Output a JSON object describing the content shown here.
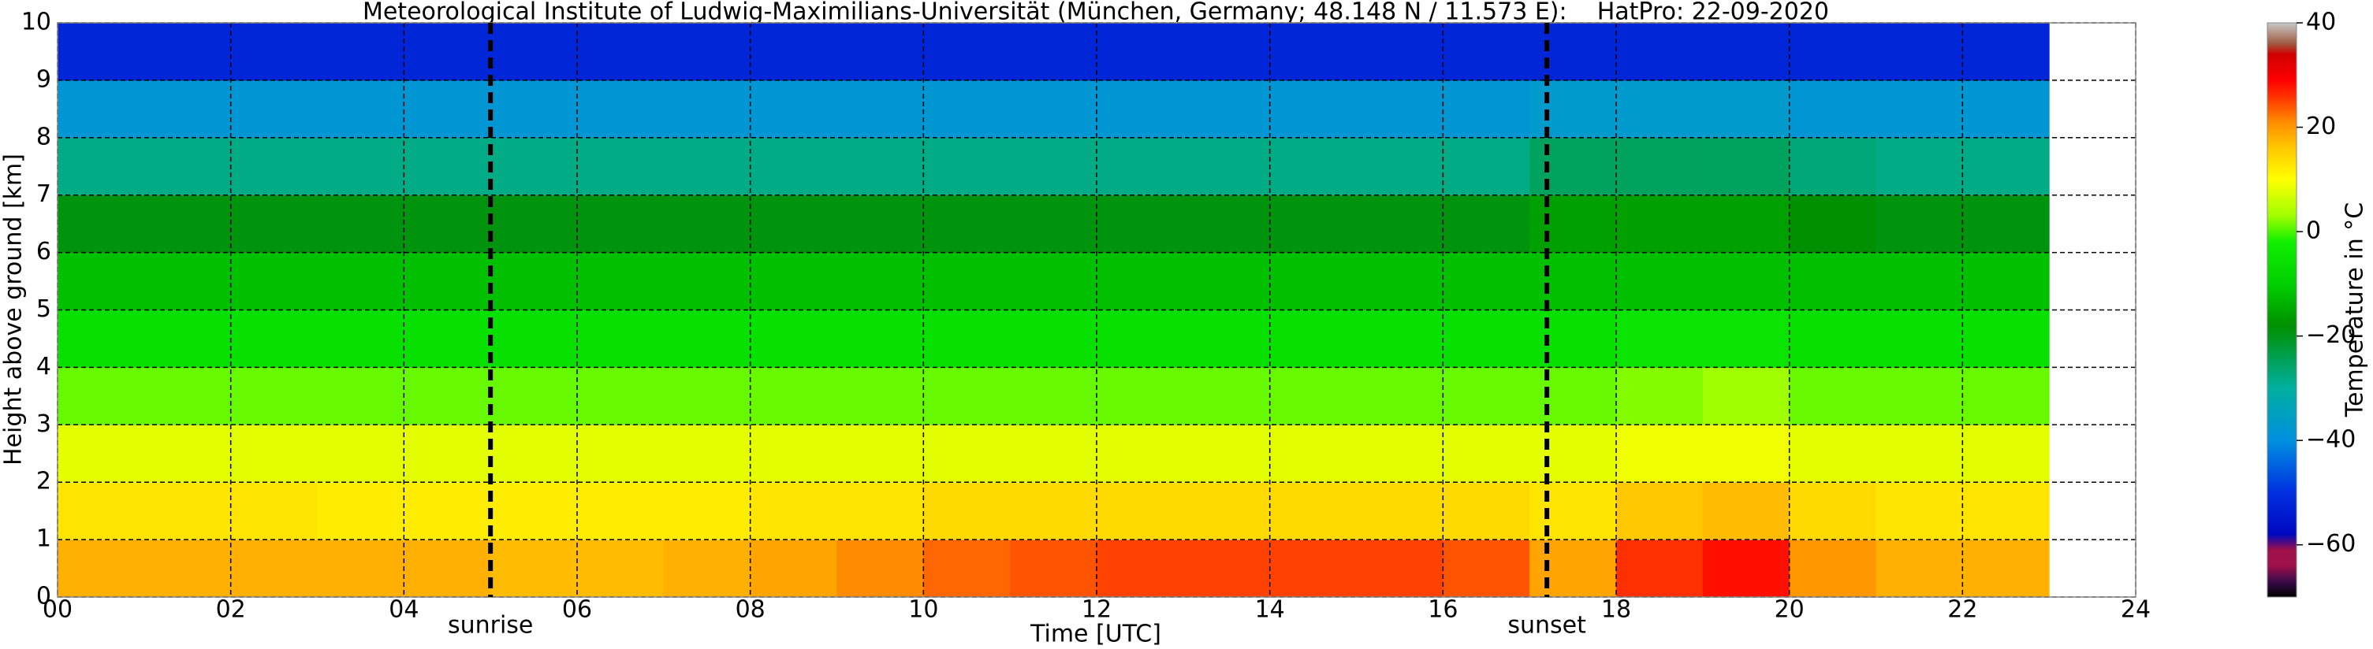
{
  "chart_data": {
    "type": "heatmap",
    "title": "Meteorological Institute of Ludwig-Maximilians-Universität (München, Germany; 48.148 N / 11.573 E):    HatPro: 22-09-2020",
    "x_label": "Time [UTC]",
    "y_label": "Height above ground [km]",
    "colorbar_label": "Temperature in °C",
    "x": [
      0,
      1,
      2,
      3,
      4,
      5,
      6,
      7,
      8,
      9,
      10,
      11,
      12,
      13,
      14,
      15,
      16,
      17,
      18,
      19,
      20,
      21,
      22,
      23
    ],
    "y": [
      0,
      1,
      2,
      3,
      4,
      5,
      6,
      7,
      8,
      9,
      10
    ],
    "z": [
      [
        18,
        18,
        18,
        18,
        18,
        17,
        17,
        18,
        19,
        21,
        23,
        24,
        25,
        25,
        25,
        25,
        24,
        19,
        26,
        28,
        20,
        18,
        18
      ],
      [
        13,
        13,
        13,
        12,
        12,
        12,
        12,
        12,
        13,
        13,
        14,
        14,
        14,
        14,
        14,
        14,
        14,
        13,
        16,
        17,
        14,
        13,
        13
      ],
      [
        8,
        8,
        8,
        8,
        8,
        8,
        8,
        8,
        8,
        8,
        8,
        8,
        8,
        8,
        8,
        8,
        8,
        8,
        9,
        9,
        8,
        8,
        8
      ],
      [
        1,
        1,
        1,
        1,
        1,
        1,
        1,
        1,
        1,
        1,
        1,
        1,
        1,
        1,
        1,
        1,
        1,
        1,
        2,
        3,
        1,
        1,
        1
      ],
      [
        -6,
        -6,
        -6,
        -6,
        -6,
        -6,
        -6,
        -6,
        -6,
        -6,
        -6,
        -6,
        -6,
        -6,
        -6,
        -6,
        -6,
        -6,
        -5,
        -5,
        -6,
        -6,
        -6
      ],
      [
        -12,
        -12,
        -12,
        -12,
        -12,
        -12,
        -12,
        -12,
        -12,
        -12,
        -12,
        -12,
        -12,
        -12,
        -12,
        -12,
        -12,
        -12,
        -12,
        -12,
        -12,
        -12,
        -12
      ],
      [
        -19,
        -19,
        -19,
        -19,
        -19,
        -19,
        -19,
        -19,
        -19,
        -19,
        -19,
        -19,
        -19,
        -19,
        -19,
        -19,
        -19,
        -16,
        -16,
        -16,
        -18,
        -19,
        -19
      ],
      [
        -28,
        -28,
        -28,
        -28,
        -28,
        -28,
        -28,
        -28,
        -28,
        -28,
        -28,
        -28,
        -28,
        -28,
        -28,
        -28,
        -28,
        -25,
        -25,
        -25,
        -27,
        -28,
        -28
      ],
      [
        -38,
        -38,
        -38,
        -38,
        -38,
        -38,
        -38,
        -38,
        -38,
        -38,
        -38,
        -38,
        -38,
        -38,
        -38,
        -38,
        -38,
        -37,
        -37,
        -37,
        -38,
        -38,
        -38
      ],
      [
        -52,
        -52,
        -52,
        -52,
        -52,
        -52,
        -52,
        -52,
        -52,
        -52,
        -52,
        -52,
        -52,
        -52,
        -52,
        -52,
        -52,
        -52,
        -52,
        -52,
        -52,
        -52,
        -52
      ]
    ],
    "xlim": [
      0,
      24
    ],
    "xticks": [
      {
        "value": 0,
        "label": "00"
      },
      {
        "value": 2,
        "label": "02"
      },
      {
        "value": 4,
        "label": "04"
      },
      {
        "value": 6,
        "label": "06"
      },
      {
        "value": 8,
        "label": "08"
      },
      10,
      12,
      14,
      16,
      18,
      20,
      22,
      24
    ],
    "ylim": [
      0,
      10
    ],
    "yticks": [
      0,
      1,
      2,
      3,
      4,
      5,
      6,
      7,
      8,
      9,
      10
    ],
    "clim": [
      -70,
      40
    ],
    "cticks": [
      {
        "value": -60,
        "label": "−60"
      },
      {
        "value": -40,
        "label": "−40"
      },
      {
        "value": -20,
        "label": "−20"
      },
      0,
      20,
      40
    ],
    "colormap": [
      {
        "value": -70,
        "color": "#000000"
      },
      {
        "value": -67,
        "color": "#3a0a4a"
      },
      {
        "value": -64,
        "color": "#a0104a"
      },
      {
        "value": -61,
        "color": "#a0104a"
      },
      {
        "value": -58,
        "color": "#0008c0"
      },
      {
        "value": -50,
        "color": "#0030e0"
      },
      {
        "value": -40,
        "color": "#0090e0"
      },
      {
        "value": -30,
        "color": "#00b0a0"
      },
      {
        "value": -24,
        "color": "#00a050"
      },
      {
        "value": -18,
        "color": "#009000"
      },
      {
        "value": -10,
        "color": "#00d000"
      },
      {
        "value": -2,
        "color": "#10f000"
      },
      {
        "value": 3,
        "color": "#a0ff00"
      },
      {
        "value": 10,
        "color": "#ffff00"
      },
      {
        "value": 16,
        "color": "#ffc800"
      },
      {
        "value": 21,
        "color": "#ff8c00"
      },
      {
        "value": 26,
        "color": "#ff3000"
      },
      {
        "value": 29,
        "color": "#ff0000"
      },
      {
        "value": 34,
        "color": "#d00000"
      },
      {
        "value": 36,
        "color": "#a05a40"
      },
      {
        "value": 40,
        "color": "#c8c8c8"
      }
    ],
    "grid": true,
    "annotations": [
      {
        "x": 5,
        "label": "sunrise"
      },
      {
        "x": 17.2,
        "label": "sunset"
      }
    ]
  }
}
